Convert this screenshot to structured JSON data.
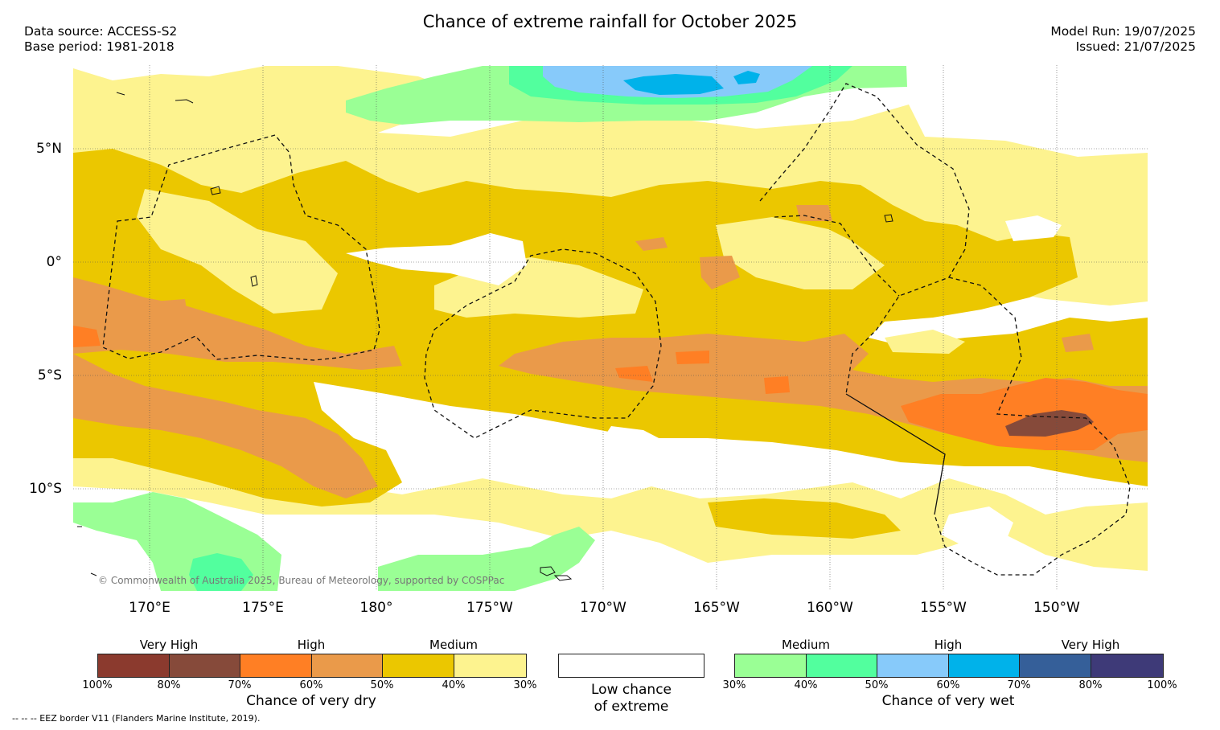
{
  "title": "Chance of extreme rainfall for October 2025",
  "header_left": {
    "data_source": "Data source: ACCESS-S2",
    "base_period": "Base period: 1981-2018"
  },
  "header_right": {
    "model_run": "Model Run: 19/07/2025",
    "issued": "Issued: 21/07/2025"
  },
  "axes": {
    "lat_labels": [
      "5°N",
      "0°",
      "5°S",
      "10°S"
    ],
    "lon_labels": [
      "170°E",
      "175°E",
      "180°",
      "175°W",
      "170°W",
      "165°W",
      "160°W",
      "155°W",
      "150°W"
    ]
  },
  "copyright": "© Commonwealth of Australia 2025, Bureau of Meteorology, supported by COSPPac",
  "colors": {
    "dry": [
      "#8b3a2e",
      "#864a3a",
      "#ff7f24",
      "#ea9a4a",
      "#ebc700",
      "#fdf38f"
    ],
    "low": "#ffffff",
    "wet": [
      "#9aff95",
      "#52ff9e",
      "#87cafa",
      "#00b2ea",
      "#355f99",
      "#3e3a78"
    ]
  },
  "legend_dry": {
    "categories": [
      "Very High",
      "High",
      "Medium"
    ],
    "ticks": [
      "100%",
      "80%",
      "70%",
      "60%",
      "50%",
      "40%",
      "30%"
    ],
    "title": "Chance of very dry"
  },
  "legend_low": {
    "line1": "Low chance",
    "line2": "of extreme"
  },
  "legend_wet": {
    "categories": [
      "Medium",
      "High",
      "Very High"
    ],
    "ticks": [
      "30%",
      "40%",
      "50%",
      "60%",
      "70%",
      "80%",
      "100%"
    ],
    "title": "Chance of very wet"
  },
  "footnote": "-- -- -- EEZ border V11 (Flanders Marine Institute, 2019)."
}
